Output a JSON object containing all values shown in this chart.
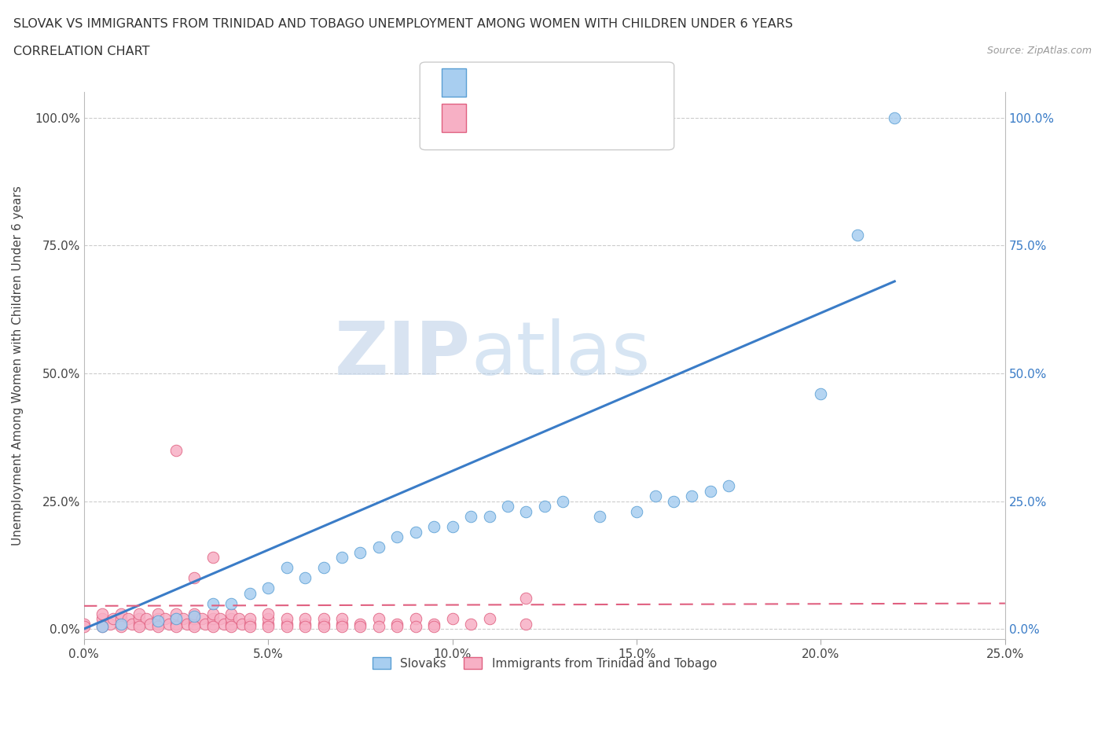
{
  "title_line1": "SLOVAK VS IMMIGRANTS FROM TRINIDAD AND TOBAGO UNEMPLOYMENT AMONG WOMEN WITH CHILDREN UNDER 6 YEARS",
  "title_line2": "CORRELATION CHART",
  "source": "Source: ZipAtlas.com",
  "ylabel": "Unemployment Among Women with Children Under 6 years",
  "xlim": [
    0.0,
    0.25
  ],
  "ylim": [
    -0.02,
    1.05
  ],
  "xticks": [
    0.0,
    0.05,
    0.1,
    0.15,
    0.2,
    0.25
  ],
  "yticks": [
    0.0,
    0.25,
    0.5,
    0.75,
    1.0
  ],
  "ytick_labels_left": [
    "0.0%",
    "25.0%",
    "50.0%",
    "75.0%",
    "100.0%"
  ],
  "ytick_labels_right": [
    "0.0%",
    "25.0%",
    "50.0%",
    "75.0%",
    "100.0%"
  ],
  "xtick_labels": [
    "0.0%",
    "5.0%",
    "10.0%",
    "15.0%",
    "20.0%",
    "25.0%"
  ],
  "slovak_color": "#a8cef0",
  "slovak_edge": "#5a9fd4",
  "immigrant_color": "#f7b0c5",
  "immigrant_edge": "#e06080",
  "trendline_slovak_color": "#3a7cc7",
  "trendline_immigrant_color": "#e06080",
  "legend_text_color": "#3a7cc7",
  "right_axis_color": "#3a7cc7",
  "watermark_text": "ZIPatlas",
  "grid_color": "#cccccc",
  "slovak_scatter_x": [
    0.005,
    0.01,
    0.02,
    0.025,
    0.03,
    0.035,
    0.04,
    0.045,
    0.05,
    0.055,
    0.06,
    0.065,
    0.07,
    0.075,
    0.08,
    0.085,
    0.09,
    0.095,
    0.1,
    0.105,
    0.11,
    0.115,
    0.12,
    0.125,
    0.13,
    0.14,
    0.15,
    0.155,
    0.16,
    0.165,
    0.17,
    0.175,
    0.2,
    0.21,
    0.22
  ],
  "slovak_scatter_y": [
    0.005,
    0.01,
    0.015,
    0.02,
    0.025,
    0.05,
    0.05,
    0.07,
    0.08,
    0.12,
    0.1,
    0.12,
    0.14,
    0.15,
    0.16,
    0.18,
    0.19,
    0.2,
    0.2,
    0.22,
    0.22,
    0.24,
    0.23,
    0.24,
    0.25,
    0.22,
    0.23,
    0.26,
    0.25,
    0.26,
    0.27,
    0.28,
    0.46,
    0.77,
    1.0
  ],
  "imm_scatter_x": [
    0.0,
    0.005,
    0.005,
    0.005,
    0.007,
    0.008,
    0.01,
    0.01,
    0.01,
    0.012,
    0.013,
    0.015,
    0.015,
    0.015,
    0.017,
    0.018,
    0.02,
    0.02,
    0.02,
    0.022,
    0.023,
    0.025,
    0.025,
    0.025,
    0.027,
    0.028,
    0.03,
    0.03,
    0.03,
    0.032,
    0.033,
    0.035,
    0.035,
    0.035,
    0.037,
    0.038,
    0.04,
    0.04,
    0.04,
    0.042,
    0.043,
    0.045,
    0.045,
    0.05,
    0.05,
    0.05,
    0.055,
    0.055,
    0.06,
    0.06,
    0.065,
    0.065,
    0.07,
    0.07,
    0.075,
    0.08,
    0.085,
    0.09,
    0.095,
    0.1,
    0.105,
    0.11,
    0.12,
    0.0,
    0.005,
    0.01,
    0.015,
    0.02,
    0.025,
    0.03,
    0.035,
    0.04,
    0.045,
    0.05,
    0.055,
    0.06,
    0.065,
    0.07,
    0.075,
    0.08,
    0.085,
    0.09,
    0.095,
    0.025,
    0.03,
    0.035,
    0.12
  ],
  "imm_scatter_y": [
    0.01,
    0.01,
    0.02,
    0.03,
    0.01,
    0.02,
    0.01,
    0.02,
    0.03,
    0.02,
    0.01,
    0.01,
    0.02,
    0.03,
    0.02,
    0.01,
    0.01,
    0.02,
    0.03,
    0.02,
    0.01,
    0.01,
    0.02,
    0.03,
    0.02,
    0.01,
    0.01,
    0.02,
    0.03,
    0.02,
    0.01,
    0.01,
    0.02,
    0.03,
    0.02,
    0.01,
    0.01,
    0.02,
    0.03,
    0.02,
    0.01,
    0.01,
    0.02,
    0.01,
    0.02,
    0.03,
    0.01,
    0.02,
    0.01,
    0.02,
    0.01,
    0.02,
    0.01,
    0.02,
    0.01,
    0.02,
    0.01,
    0.02,
    0.01,
    0.02,
    0.01,
    0.02,
    0.01,
    0.005,
    0.005,
    0.005,
    0.005,
    0.005,
    0.005,
    0.005,
    0.005,
    0.005,
    0.005,
    0.005,
    0.005,
    0.005,
    0.005,
    0.005,
    0.005,
    0.005,
    0.005,
    0.005,
    0.005,
    0.35,
    0.1,
    0.14,
    0.06
  ],
  "trendline_slovak_x0": 0.0,
  "trendline_slovak_x1": 0.22,
  "trendline_slovak_y0": 0.0,
  "trendline_slovak_y1": 0.68,
  "trendline_imm_x0": 0.0,
  "trendline_imm_x1": 0.25,
  "trendline_imm_y0": 0.045,
  "trendline_imm_y1": 0.05
}
